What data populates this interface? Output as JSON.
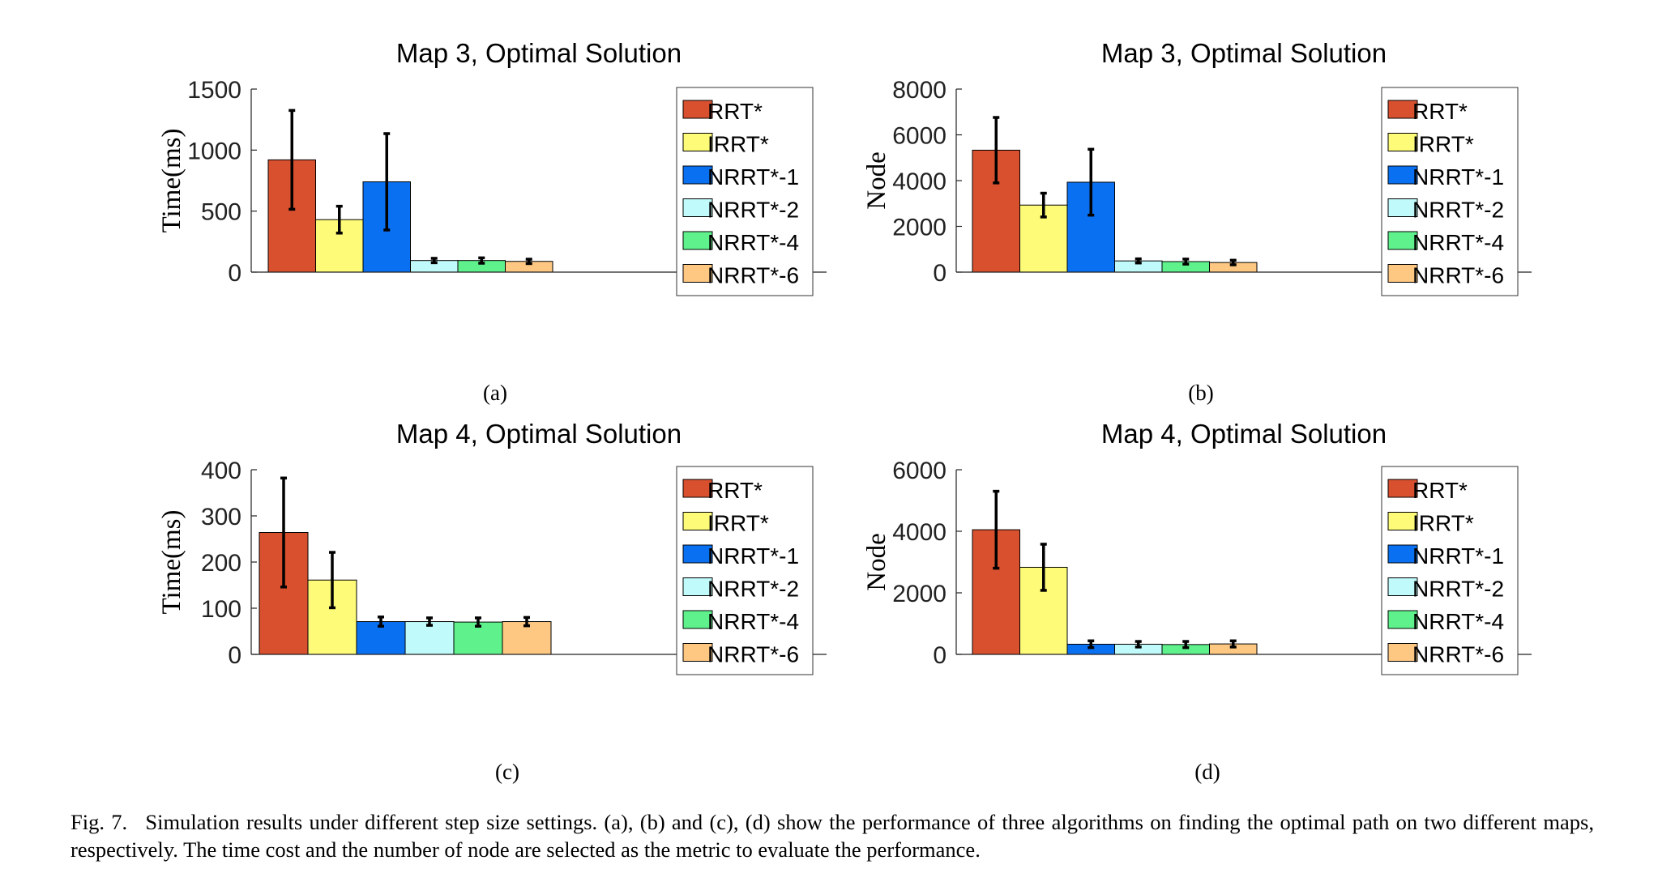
{
  "colors": {
    "RRT*": "#d9502f",
    "IRRT*": "#fdfb78",
    "NRRT*-1": "#0a70f2",
    "NRRT*-2": "#c0fafa",
    "NRRT*-4": "#5ff28c",
    "NRRT*-6": "#fec883"
  },
  "chart_data": [
    {
      "type": "bar",
      "panel_label": "(a)",
      "title": "Map 3, Optimal Solution",
      "xlabel": "",
      "ylabel": "Time(ms)",
      "ylim": [
        0,
        1500
      ],
      "yticks": [
        0,
        500,
        1000,
        1500
      ],
      "grid": false,
      "legend_position": "top-right",
      "categories": [
        "RRT*",
        "IRRT*",
        "NRRT*-1",
        "NRRT*-2",
        "NRRT*-4",
        "NRRT*-6"
      ],
      "values": [
        920,
        430,
        740,
        95,
        95,
        88
      ],
      "errors": [
        405,
        110,
        395,
        18,
        22,
        18
      ]
    },
    {
      "type": "bar",
      "panel_label": "(b)",
      "title": "Map 3, Optimal Solution",
      "xlabel": "",
      "ylabel": "Node",
      "ylim": [
        0,
        8000
      ],
      "yticks": [
        0,
        2000,
        4000,
        6000,
        8000
      ],
      "grid": false,
      "legend_position": "top-right",
      "categories": [
        "RRT*",
        "IRRT*",
        "NRRT*-1",
        "NRRT*-2",
        "NRRT*-4",
        "NRRT*-6"
      ],
      "values": [
        5330,
        2930,
        3930,
        490,
        460,
        420
      ],
      "errors": [
        1430,
        520,
        1440,
        90,
        110,
        100
      ]
    },
    {
      "type": "bar",
      "panel_label": "(c)",
      "title": "Map 4, Optimal Solution",
      "xlabel": "",
      "ylabel": "Time(ms)",
      "ylim": [
        0,
        400
      ],
      "yticks": [
        0,
        100,
        200,
        300,
        400
      ],
      "grid": false,
      "legend_position": "top-right",
      "categories": [
        "RRT*",
        "IRRT*",
        "NRRT*-1",
        "NRRT*-2",
        "NRRT*-4",
        "NRRT*-6"
      ],
      "values": [
        264,
        161,
        71,
        71,
        70,
        71
      ],
      "errors": [
        118,
        60,
        10,
        8,
        9,
        9
      ]
    },
    {
      "type": "bar",
      "panel_label": "(d)",
      "title": "Map 4, Optimal Solution",
      "xlabel": "",
      "ylabel": "Node",
      "ylim": [
        0,
        6000
      ],
      "yticks": [
        0,
        2000,
        4000,
        6000
      ],
      "grid": false,
      "legend_position": "top-right",
      "categories": [
        "RRT*",
        "IRRT*",
        "NRRT*-1",
        "NRRT*-2",
        "NRRT*-4",
        "NRRT*-6"
      ],
      "values": [
        4050,
        2830,
        330,
        330,
        320,
        340
      ],
      "errors": [
        1250,
        750,
        110,
        90,
        100,
        100
      ]
    }
  ],
  "caption": {
    "label": "Fig. 7.",
    "text": "Simulation results under different step size settings. (a), (b) and (c), (d) show the performance of three algorithms on finding the optimal path on two different maps, respectively. The time cost and the number of node are selected as the metric to evaluate the performance."
  }
}
